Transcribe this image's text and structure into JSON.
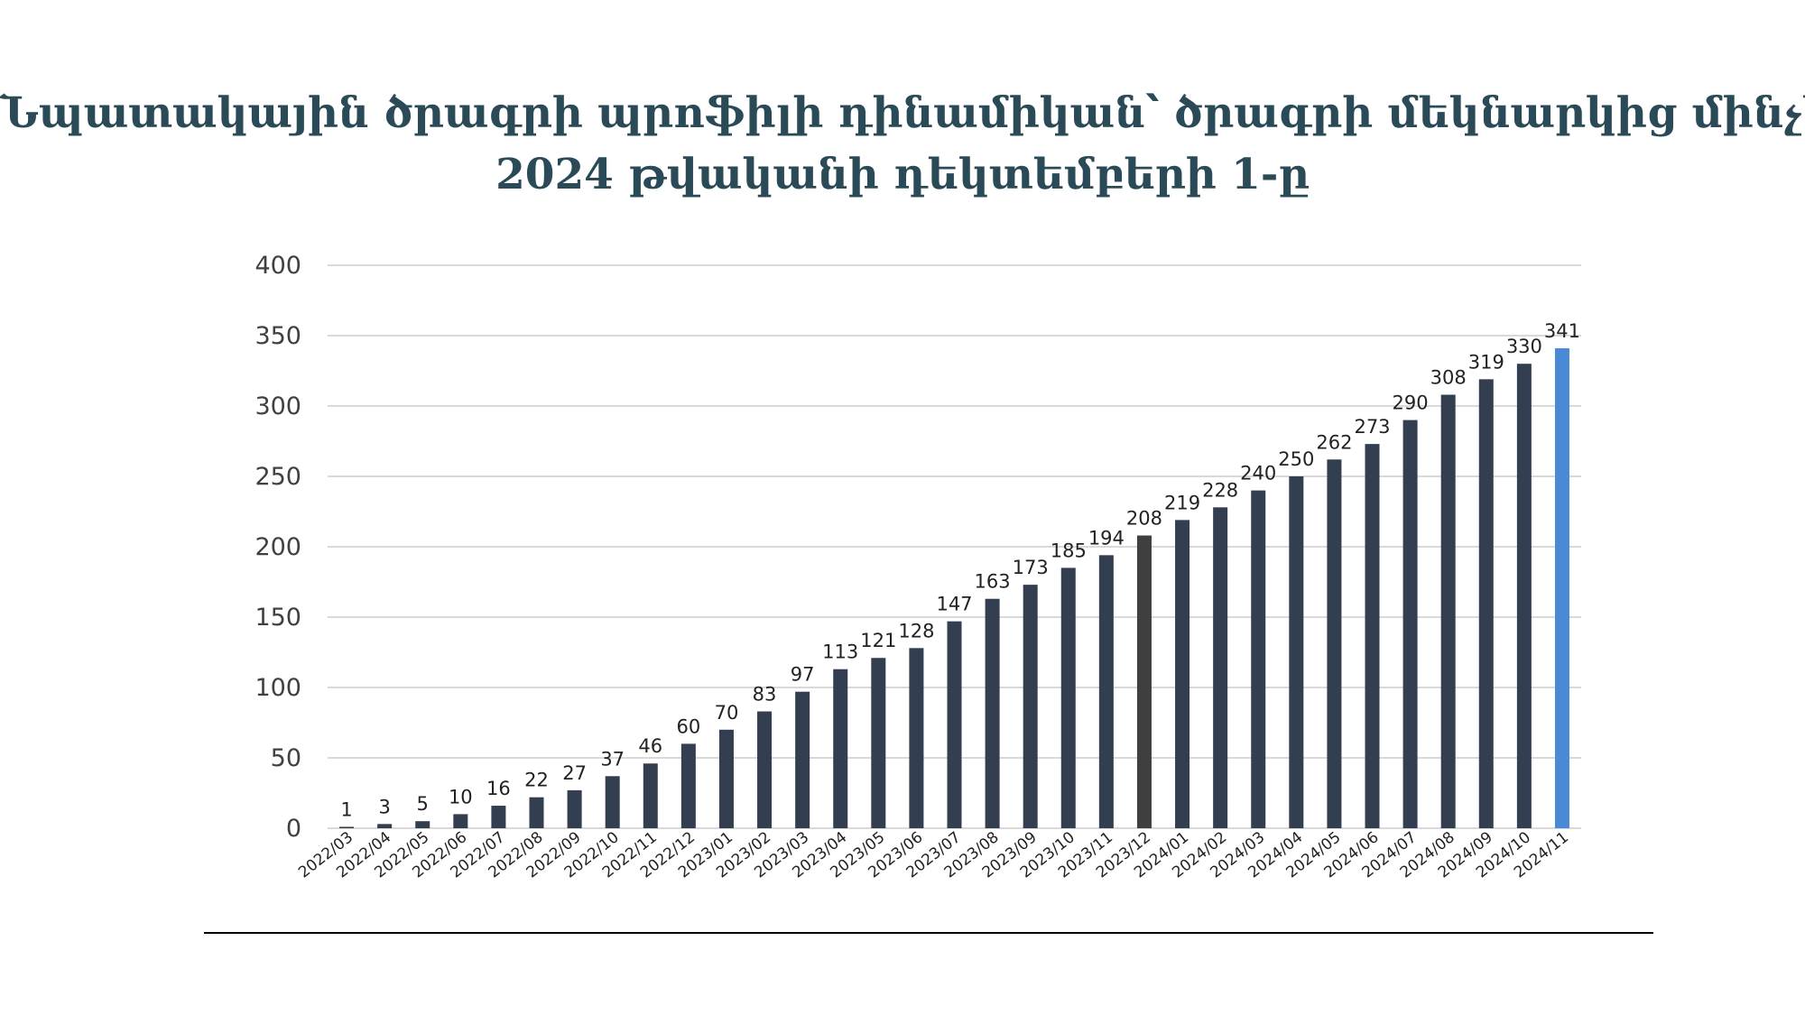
{
  "title": {
    "line1": "Նպատակային ծրագրի պրոֆիլի դինամիկան՝ ծրագրի մեկնարկից մինչև",
    "line2": "2024 թվականի դեկտեմբերի 1-ը"
  },
  "colors": {
    "title": "#2a4a58",
    "bar": "#333e50",
    "bar_2023_12": "#3f3f3f",
    "bar_last": "#4a89d6",
    "grid": "#d9d9d9",
    "text": "#404040"
  },
  "chart_data": {
    "type": "bar",
    "categories": [
      "2022/03",
      "2022/04",
      "2022/05",
      "2022/06",
      "2022/07",
      "2022/08",
      "2022/09",
      "2022/10",
      "2022/11",
      "2022/12",
      "2023/01",
      "2023/02",
      "2023/03",
      "2023/04",
      "2023/05",
      "2023/06",
      "2023/07",
      "2023/08",
      "2023/09",
      "2023/10",
      "2023/11",
      "2023/12",
      "2024/01",
      "2024/02",
      "2024/03",
      "2024/04",
      "2024/05",
      "2024/06",
      "2024/07",
      "2024/08",
      "2024/09",
      "2024/10",
      "2024/11"
    ],
    "values": [
      1,
      3,
      5,
      10,
      16,
      22,
      27,
      37,
      46,
      60,
      70,
      83,
      97,
      113,
      121,
      128,
      147,
      163,
      173,
      185,
      194,
      208,
      219,
      228,
      240,
      250,
      262,
      273,
      290,
      308,
      319,
      330,
      341
    ],
    "ylim": [
      0,
      400
    ],
    "yticks": [
      0,
      50,
      100,
      150,
      200,
      250,
      300,
      350,
      400
    ],
    "grid": true,
    "data_labels": true
  }
}
